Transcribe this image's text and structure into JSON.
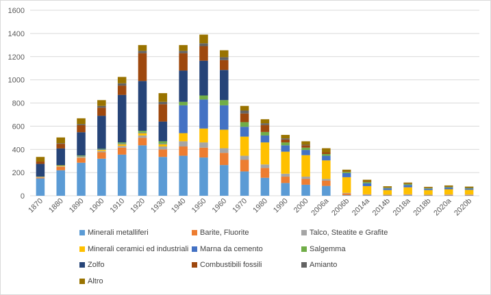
{
  "chart_data": {
    "type": "bar",
    "stacked": true,
    "categories": [
      "1870",
      "1880",
      "1890",
      "1900",
      "1910",
      "1920",
      "1930",
      "1940",
      "1950",
      "1960",
      "1970",
      "1980",
      "1990",
      "2000",
      "2006a",
      "2006b",
      "2014a",
      "2014b",
      "2018a",
      "2018b",
      "2020a",
      "2020b"
    ],
    "ylim": [
      0,
      1600
    ],
    "yticks": [
      0,
      200,
      400,
      600,
      800,
      1000,
      1200,
      1400,
      1600
    ],
    "grid": true,
    "legend_position": "bottom",
    "series": [
      {
        "name": "Minerali metalliferi",
        "color": "#5b9bd5",
        "values": [
          150,
          220,
          285,
          320,
          355,
          435,
          335,
          345,
          330,
          265,
          210,
          155,
          110,
          95,
          85,
          5,
          5,
          3,
          5,
          3,
          3,
          3
        ]
      },
      {
        "name": "Barite, Fluorite",
        "color": "#ed7d31",
        "values": [
          8,
          30,
          40,
          55,
          60,
          65,
          65,
          80,
          85,
          105,
          100,
          85,
          55,
          50,
          45,
          15,
          5,
          3,
          5,
          3,
          5,
          5
        ]
      },
      {
        "name": "Talco, Steatite e Grafite",
        "color": "#a5a5a5",
        "values": [
          3,
          5,
          8,
          10,
          15,
          20,
          25,
          45,
          45,
          40,
          35,
          30,
          25,
          20,
          15,
          5,
          3,
          3,
          3,
          3,
          3,
          3
        ]
      },
      {
        "name": "Minerali ceramici ed industriali",
        "color": "#ffc000",
        "values": [
          2,
          5,
          5,
          10,
          15,
          20,
          20,
          70,
          120,
          160,
          165,
          190,
          190,
          185,
          160,
          135,
          70,
          40,
          60,
          40,
          45,
          40
        ]
      },
      {
        "name": "Marna da cemento",
        "color": "#4472c4",
        "values": [
          0,
          0,
          5,
          5,
          5,
          5,
          5,
          240,
          250,
          210,
          85,
          60,
          55,
          45,
          40,
          35,
          25,
          15,
          20,
          12,
          15,
          12
        ]
      },
      {
        "name": "Salgemma",
        "color": "#70ad47",
        "values": [
          2,
          3,
          5,
          5,
          10,
          15,
          20,
          30,
          35,
          45,
          40,
          30,
          25,
          20,
          15,
          10,
          10,
          5,
          8,
          5,
          5,
          5
        ]
      },
      {
        "name": "Zolfo",
        "color": "#264478",
        "values": [
          110,
          145,
          200,
          285,
          410,
          430,
          170,
          270,
          300,
          260,
          0,
          0,
          0,
          0,
          0,
          0,
          0,
          0,
          0,
          0,
          0,
          0
        ]
      },
      {
        "name": "Combustibili fossili",
        "color": "#9e480e",
        "values": [
          20,
          40,
          60,
          70,
          80,
          240,
          150,
          150,
          125,
          85,
          75,
          60,
          25,
          20,
          15,
          5,
          5,
          3,
          3,
          3,
          3,
          3
        ]
      },
      {
        "name": "Amianto",
        "color": "#636363",
        "values": [
          0,
          5,
          10,
          15,
          20,
          20,
          20,
          20,
          25,
          25,
          25,
          15,
          10,
          5,
          0,
          0,
          0,
          0,
          0,
          0,
          0,
          0
        ]
      },
      {
        "name": "Altro",
        "color": "#997300",
        "values": [
          40,
          50,
          50,
          50,
          55,
          50,
          75,
          50,
          75,
          60,
          40,
          35,
          30,
          30,
          35,
          15,
          15,
          10,
          10,
          8,
          10,
          8
        ]
      }
    ]
  }
}
